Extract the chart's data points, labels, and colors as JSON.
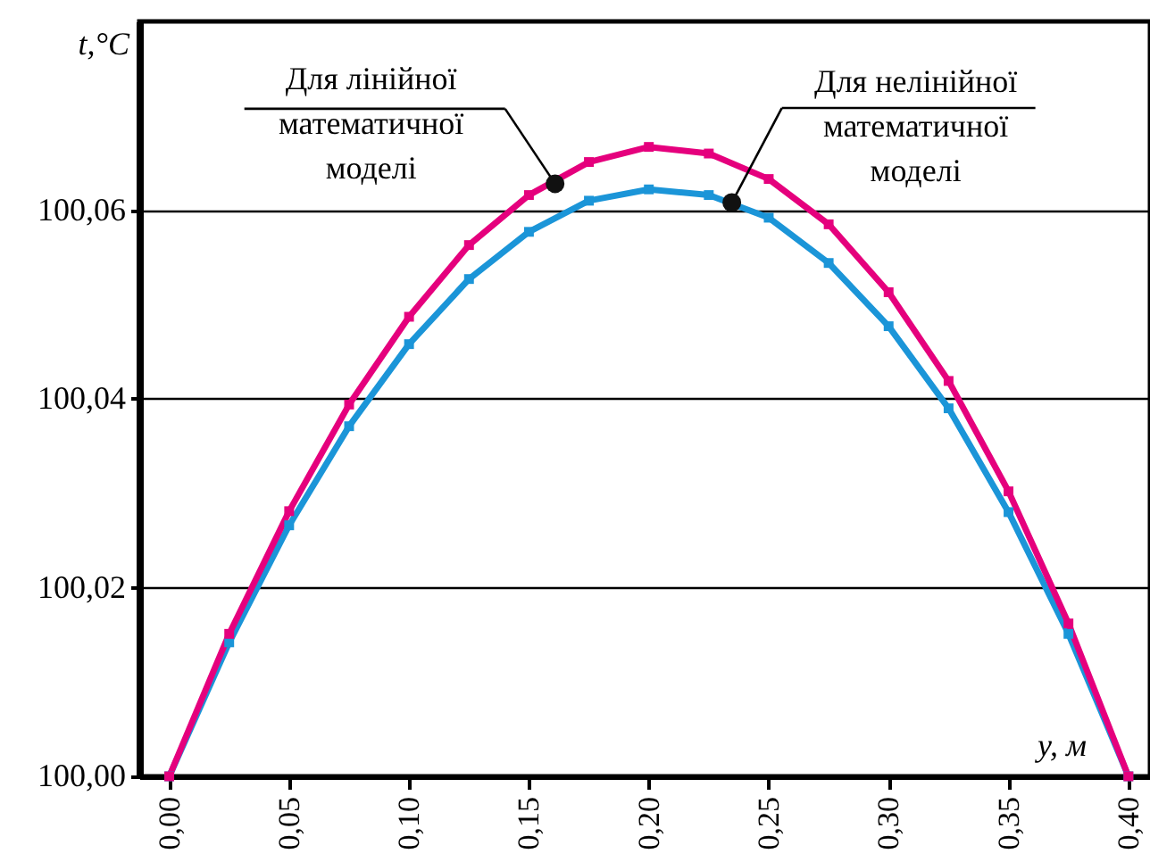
{
  "chart_data": {
    "type": "line",
    "xlabel": "y, м",
    "ylabel": "t,°C",
    "x": [
      0,
      0.025,
      0.05,
      0.075,
      0.1,
      0.125,
      0.15,
      0.175,
      0.2,
      0.225,
      0.25,
      0.275,
      0.3,
      0.325,
      0.35,
      0.375,
      0.4
    ],
    "series": [
      {
        "color": "#e5007d",
        "values": [
          100.0,
          100.0151,
          100.0281,
          100.0394,
          100.0487,
          100.0563,
          100.0616,
          100.0651,
          100.0667,
          100.066,
          100.0633,
          100.0585,
          100.0513,
          100.0419,
          100.0302,
          100.0162,
          100.0
        ]
      },
      {
        "color": "#1b95d8",
        "values": [
          100.0,
          100.0142,
          100.0266,
          100.0371,
          100.0458,
          100.0527,
          100.0577,
          100.061,
          100.0622,
          100.0616,
          100.0592,
          100.0544,
          100.0477,
          100.039,
          100.028,
          100.0151,
          100.0
        ]
      }
    ],
    "xlim": [
      -0.0125,
      0.409
    ],
    "ylim": [
      100.0,
      100.08
    ],
    "xticks": [
      {
        "value": 0,
        "label": "0,00"
      },
      {
        "value": 0.05,
        "label": "0,05"
      },
      {
        "value": 0.1,
        "label": "0,10"
      },
      {
        "value": 0.15,
        "label": "0,15"
      },
      {
        "value": 0.2,
        "label": "0,20"
      },
      {
        "value": 0.25,
        "label": "0,25"
      },
      {
        "value": 0.3,
        "label": "0,30"
      },
      {
        "value": 0.35,
        "label": "0,35"
      },
      {
        "value": 0.4,
        "label": "0,40"
      }
    ],
    "yticks": [
      {
        "value": 100.0,
        "label": "100,00"
      },
      {
        "value": 100.02,
        "label": "100,02"
      },
      {
        "value": 100.04,
        "label": "100,04"
      },
      {
        "value": 100.06,
        "label": "100,06"
      }
    ],
    "annotations": [
      {
        "text": "Для лінійної\nматематичної\nмоделі",
        "x": 0.1609,
        "y": 100.0628
      },
      {
        "text": "Для нелінійної\nматематичної\nмоделі",
        "x": 0.2346,
        "y": 100.0608
      }
    ],
    "grid": "y",
    "marker": "square",
    "line_style": "solid"
  }
}
